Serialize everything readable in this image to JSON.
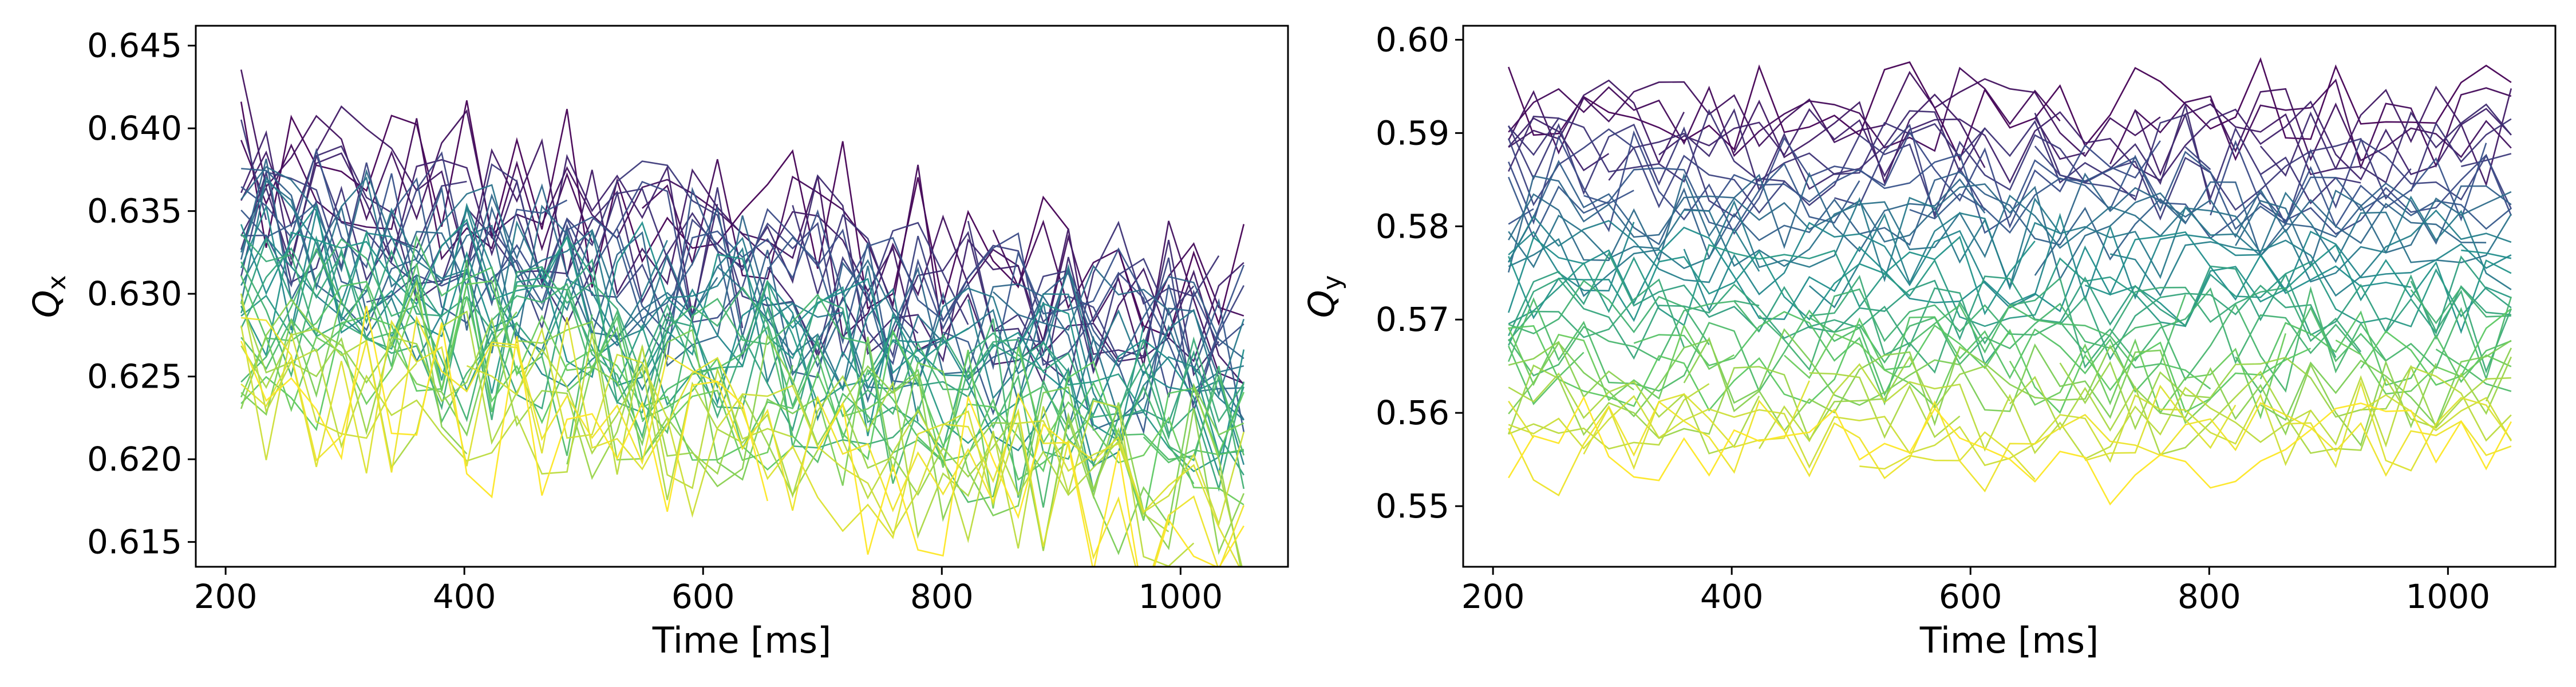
{
  "colormap": [
    "#440154",
    "#3b528b",
    "#21918c",
    "#5ec962",
    "#fde725"
  ],
  "charts": [
    {
      "xlabel": "Time [ms]",
      "ylabel_main": "Q",
      "ylabel_sub": "x",
      "xticks": [
        "200",
        "400",
        "600",
        "800",
        "1000"
      ],
      "yticks": [
        "0.615",
        "0.620",
        "0.625",
        "0.630",
        "0.635",
        "0.640",
        "0.645"
      ]
    },
    {
      "xlabel": "Time [ms]",
      "ylabel_main": "Q",
      "ylabel_sub": "y",
      "xticks": [
        "200",
        "400",
        "600",
        "800",
        "1000"
      ],
      "yticks": [
        "0.55",
        "0.56",
        "0.57",
        "0.58",
        "0.59",
        "0.60"
      ]
    }
  ],
  "chart_data": [
    {
      "type": "line",
      "xlabel": "Time [ms]",
      "ylabel": "Q_x",
      "xlim": [
        175,
        1090
      ],
      "ylim": [
        0.6135,
        0.6462
      ],
      "xticks": [
        200,
        400,
        600,
        800,
        1000
      ],
      "yticks": [
        0.615,
        0.62,
        0.625,
        0.63,
        0.635,
        0.64,
        0.645
      ],
      "grid": false,
      "legend": "none",
      "colormap": "viridis",
      "x_range": [
        213,
        1055
      ],
      "series_count": 40,
      "series_level_start": 0.6385,
      "series_level_end": 0.6245,
      "series_level_drift": -0.0085,
      "series_noise": 0.0048
    },
    {
      "type": "line",
      "xlabel": "Time [ms]",
      "ylabel": "Q_y",
      "xlim": [
        175,
        1090
      ],
      "ylim": [
        0.5435,
        0.6015
      ],
      "xticks": [
        200,
        400,
        600,
        800,
        1000
      ],
      "yticks": [
        0.55,
        0.56,
        0.57,
        0.58,
        0.59,
        0.6
      ],
      "grid": false,
      "legend": "none",
      "colormap": "viridis",
      "x_range": [
        213,
        1055
      ],
      "series_count": 40,
      "series_level_start": 0.593,
      "series_level_end": 0.556,
      "series_level_drift": 0.0,
      "series_noise": 0.0048
    }
  ]
}
